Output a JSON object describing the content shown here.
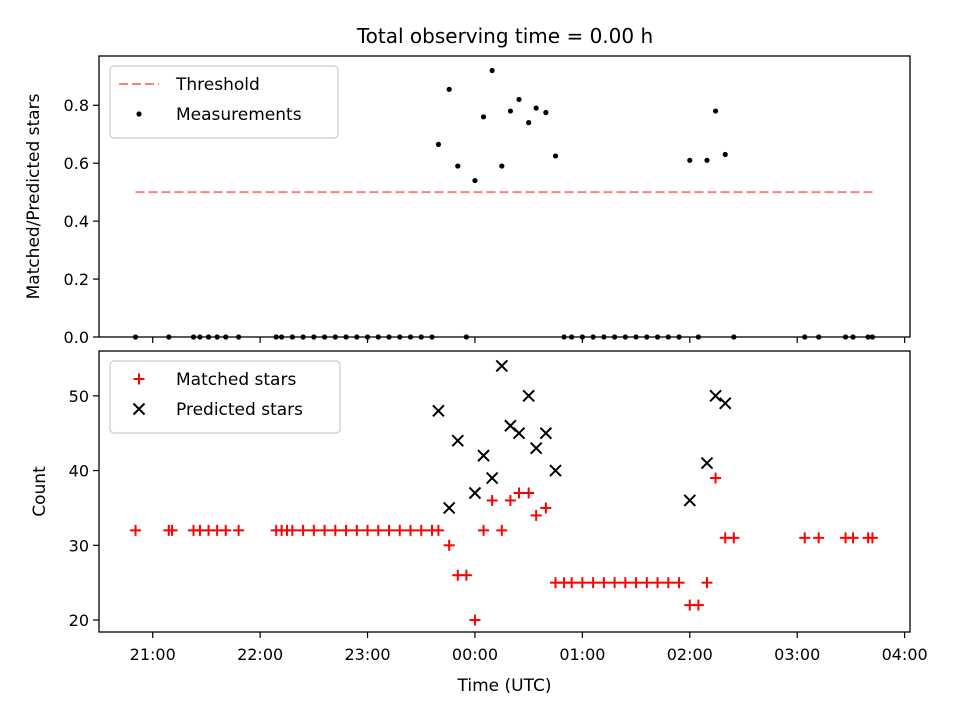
{
  "figure": {
    "title": "Total observing time = 0.00 h"
  },
  "chart_data": [
    {
      "type": "scatter",
      "ylabel": "Matched/Predicted stars",
      "ylim": [
        0.0,
        0.97
      ],
      "yticks": [
        "0.0",
        "0.2",
        "0.4",
        "0.6",
        "0.8"
      ],
      "ytick_values": [
        0.0,
        0.2,
        0.4,
        0.6,
        0.8
      ],
      "legend": {
        "placement": "upper-left"
      },
      "threshold": {
        "name": "Threshold",
        "value": 0.5,
        "x_start": 20.84,
        "x_end": 27.72,
        "color": "#ff7f7f"
      },
      "series": [
        {
          "name": "Measurements",
          "marker": "dot",
          "color": "#000000",
          "x": [
            20.84,
            21.15,
            21.38,
            21.44,
            21.52,
            21.6,
            21.68,
            21.8,
            22.15,
            22.2,
            22.3,
            22.4,
            22.5,
            22.6,
            22.7,
            22.8,
            22.9,
            23.0,
            23.1,
            23.2,
            23.3,
            23.4,
            23.5,
            23.6,
            23.66,
            23.76,
            23.84,
            23.92,
            24.0,
            24.08,
            24.16,
            24.25,
            24.33,
            24.41,
            24.5,
            24.57,
            24.66,
            24.75,
            24.83,
            24.9,
            25.0,
            25.1,
            25.2,
            25.3,
            25.4,
            25.5,
            25.6,
            25.7,
            25.8,
            25.9,
            26.0,
            26.08,
            26.16,
            26.24,
            26.33,
            26.41,
            27.07,
            27.2,
            27.45,
            27.52,
            27.66,
            27.7
          ],
          "y": [
            0,
            0,
            0,
            0,
            0,
            0,
            0,
            0,
            0,
            0,
            0,
            0,
            0,
            0,
            0,
            0,
            0,
            0,
            0,
            0,
            0,
            0,
            0,
            0,
            0.665,
            0.855,
            0.59,
            0,
            0.54,
            0.76,
            0.92,
            0.59,
            0.78,
            0.82,
            0.74,
            0.79,
            0.775,
            0.625,
            0,
            0,
            0,
            0,
            0,
            0,
            0,
            0,
            0,
            0,
            0,
            0,
            0.61,
            0,
            0.61,
            0.78,
            0.63,
            0,
            0,
            0,
            0,
            0,
            0,
            0
          ]
        }
      ]
    },
    {
      "type": "scatter",
      "xlabel": "Time (UTC)",
      "ylabel": "Count",
      "xlim": [
        20.5,
        28.05
      ],
      "ylim": [
        18.4,
        56.0
      ],
      "yticks": [
        "20",
        "30",
        "40",
        "50"
      ],
      "ytick_values": [
        20,
        30,
        40,
        50
      ],
      "xticks": [
        "21:00",
        "22:00",
        "23:00",
        "00:00",
        "01:00",
        "02:00",
        "03:00",
        "04:00"
      ],
      "xtick_values": [
        21,
        22,
        23,
        24,
        25,
        26,
        27,
        28
      ],
      "legend": {
        "placement": "upper-left"
      },
      "series": [
        {
          "name": "Matched stars",
          "marker": "plus",
          "color": "#ff0000",
          "x": [
            20.84,
            21.15,
            21.18,
            21.38,
            21.44,
            21.52,
            21.6,
            21.68,
            21.8,
            22.15,
            22.2,
            22.25,
            22.3,
            22.4,
            22.5,
            22.6,
            22.7,
            22.8,
            22.9,
            23.0,
            23.1,
            23.2,
            23.3,
            23.4,
            23.5,
            23.6,
            23.66,
            23.76,
            23.84,
            23.92,
            24.0,
            24.08,
            24.16,
            24.25,
            24.33,
            24.41,
            24.5,
            24.57,
            24.66,
            24.75,
            24.83,
            24.9,
            25.0,
            25.1,
            25.2,
            25.3,
            25.4,
            25.5,
            25.6,
            25.7,
            25.8,
            25.9,
            26.0,
            26.08,
            26.16,
            26.24,
            26.33,
            26.41,
            27.07,
            27.2,
            27.45,
            27.52,
            27.66,
            27.7
          ],
          "y": [
            32,
            32,
            32,
            32,
            32,
            32,
            32,
            32,
            32,
            32,
            32,
            32,
            32,
            32,
            32,
            32,
            32,
            32,
            32,
            32,
            32,
            32,
            32,
            32,
            32,
            32,
            32,
            30,
            26,
            26,
            20,
            32,
            36,
            32,
            36,
            37,
            37,
            34,
            35,
            25,
            25,
            25,
            25,
            25,
            25,
            25,
            25,
            25,
            25,
            25,
            25,
            25,
            22,
            22,
            25,
            39,
            31,
            31,
            31,
            31,
            31,
            31,
            31,
            31
          ]
        },
        {
          "name": "Predicted stars",
          "marker": "x",
          "color": "#000000",
          "x": [
            23.66,
            23.76,
            23.84,
            24.0,
            24.08,
            24.16,
            24.25,
            24.33,
            24.41,
            24.5,
            24.57,
            24.66,
            24.75,
            26.0,
            26.16,
            26.24,
            26.33
          ],
          "y": [
            48,
            35,
            44,
            37,
            42,
            39,
            54,
            46,
            45,
            50,
            43,
            45,
            40,
            36,
            41,
            50,
            49
          ]
        }
      ]
    }
  ]
}
